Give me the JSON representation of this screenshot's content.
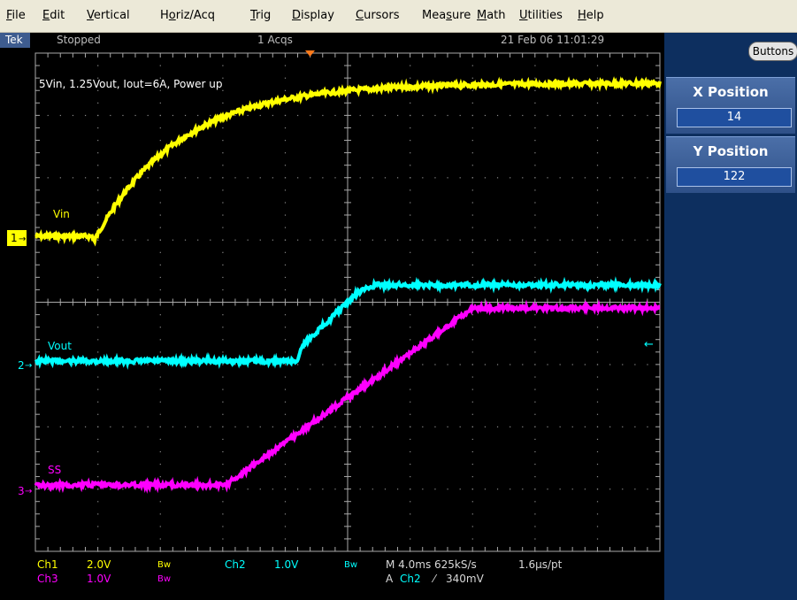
{
  "menu": [
    {
      "label": "File",
      "u": "F",
      "rest": "ile"
    },
    {
      "label": "Edit",
      "u": "E",
      "rest": "dit"
    },
    {
      "label": "Vertical",
      "u": "V",
      "rest": "ertical"
    },
    {
      "label": "Horiz/Acq",
      "pre": "H",
      "u": "o",
      "rest": "riz/Acq"
    },
    {
      "label": "Trig",
      "u": "T",
      "rest": "rig"
    },
    {
      "label": "Display",
      "u": "D",
      "rest": "isplay"
    },
    {
      "label": "Cursors",
      "u": "C",
      "rest": "ursors"
    },
    {
      "label": "Measure",
      "pre": "Mea",
      "u": "s",
      "rest": "ure"
    },
    {
      "label": "Math",
      "u": "M",
      "rest": "ath"
    },
    {
      "label": "Utilities",
      "u": "U",
      "rest": "tilities"
    },
    {
      "label": "Help",
      "u": "H",
      "rest": "elp"
    }
  ],
  "status": {
    "brand": "Tek",
    "state": "Stopped",
    "acqs": "1 Acqs",
    "datetime": "21 Feb 06 11:01:29"
  },
  "side_panel": {
    "buttons_label": "Buttons",
    "x_position": {
      "label": "X Position",
      "value": "14"
    },
    "y_position": {
      "label": "Y Position",
      "value": "122"
    }
  },
  "screen": {
    "annotation": "5Vin, 1.25Vout, Iout=6A, Power up",
    "channels": [
      {
        "name": "Vin",
        "marker": "1",
        "color": "#ffff00"
      },
      {
        "name": "Vout",
        "marker": "2",
        "color": "#00ffff"
      },
      {
        "name": "SS",
        "marker": "3",
        "color": "#ff00ff"
      }
    ]
  },
  "readout": {
    "ch1": "Ch1",
    "ch1_scale": "2.0V",
    "bw": "Bw",
    "ch2": "Ch2",
    "ch2_scale": "1.0V",
    "ch3": "Ch3",
    "ch3_scale": "1.0V",
    "timebase": "M 4.0ms 625kS/s",
    "pt": "1.6µs/pt",
    "trig_prefix": "A",
    "trig_src": "Ch2",
    "trig_slope": "⁄",
    "trig_level": "340mV"
  }
}
